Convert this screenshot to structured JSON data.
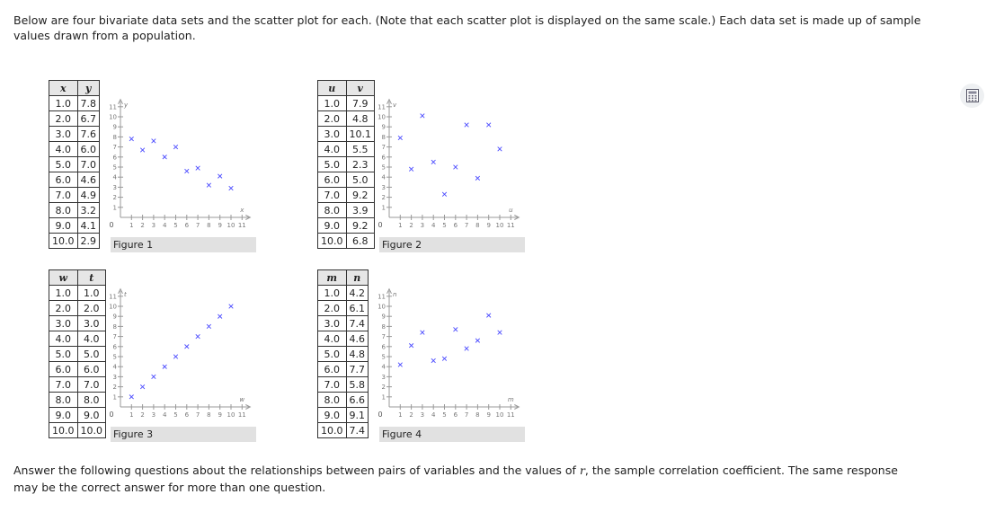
{
  "intro_text": "Below are four bivariate data sets and the scatter plot for each. (Note that each scatter plot is displayed on the same scale.) Each data set is made up of sample values drawn from a population.",
  "outro_text": "Answer the following questions about the relationships between pairs of variables and the values of r, the sample correlation coefficient. The same response may be the correct answer for more than one question.",
  "calculator_icon": "calculator-icon",
  "marker_color": "#4a4aff",
  "chart_data": [
    {
      "type": "scatter",
      "caption": "Figure 1",
      "xlabel": "x",
      "ylabel": "y",
      "xlim": [
        0,
        11
      ],
      "ylim": [
        0,
        11
      ],
      "x_ticks": [
        "1",
        "2",
        "3",
        "4",
        "5",
        "6",
        "7",
        "8",
        "9",
        "10",
        "11"
      ],
      "y_ticks": [
        "1",
        "2",
        "3",
        "4",
        "5",
        "6",
        "7",
        "8",
        "9",
        "10",
        "11"
      ],
      "origin_label": "0",
      "x": [
        "1.0",
        "2.0",
        "3.0",
        "4.0",
        "5.0",
        "6.0",
        "7.0",
        "8.0",
        "9.0",
        "10.0"
      ],
      "y": [
        "7.8",
        "6.7",
        "7.6",
        "6.0",
        "7.0",
        "4.6",
        "4.9",
        "3.2",
        "4.1",
        "2.9"
      ]
    },
    {
      "type": "scatter",
      "caption": "Figure 2",
      "xlabel": "u",
      "ylabel": "v",
      "xlim": [
        0,
        11
      ],
      "ylim": [
        0,
        11
      ],
      "x_ticks": [
        "1",
        "2",
        "3",
        "4",
        "5",
        "6",
        "7",
        "8",
        "9",
        "10",
        "11"
      ],
      "y_ticks": [
        "1",
        "2",
        "3",
        "4",
        "5",
        "6",
        "7",
        "8",
        "9",
        "10",
        "11"
      ],
      "origin_label": "0",
      "x": [
        "1.0",
        "2.0",
        "3.0",
        "4.0",
        "5.0",
        "6.0",
        "7.0",
        "8.0",
        "9.0",
        "10.0"
      ],
      "y": [
        "7.9",
        "4.8",
        "10.1",
        "5.5",
        "2.3",
        "5.0",
        "9.2",
        "3.9",
        "9.2",
        "6.8"
      ]
    },
    {
      "type": "scatter",
      "caption": "Figure 3",
      "xlabel": "w",
      "ylabel": "t",
      "xlim": [
        0,
        11
      ],
      "ylim": [
        0,
        11
      ],
      "x_ticks": [
        "1",
        "2",
        "3",
        "4",
        "5",
        "6",
        "7",
        "8",
        "9",
        "10",
        "11"
      ],
      "y_ticks": [
        "1",
        "2",
        "3",
        "4",
        "5",
        "6",
        "7",
        "8",
        "9",
        "10",
        "11"
      ],
      "origin_label": "0",
      "x": [
        "1.0",
        "2.0",
        "3.0",
        "4.0",
        "5.0",
        "6.0",
        "7.0",
        "8.0",
        "9.0",
        "10.0"
      ],
      "y": [
        "1.0",
        "2.0",
        "3.0",
        "4.0",
        "5.0",
        "6.0",
        "7.0",
        "8.0",
        "9.0",
        "10.0"
      ]
    },
    {
      "type": "scatter",
      "caption": "Figure 4",
      "xlabel": "m",
      "ylabel": "n",
      "xlim": [
        0,
        11
      ],
      "ylim": [
        0,
        11
      ],
      "x_ticks": [
        "1",
        "2",
        "3",
        "4",
        "5",
        "6",
        "7",
        "8",
        "9",
        "10",
        "11"
      ],
      "y_ticks": [
        "1",
        "2",
        "3",
        "4",
        "5",
        "6",
        "7",
        "8",
        "9",
        "10",
        "11"
      ],
      "origin_label": "0",
      "x": [
        "1.0",
        "2.0",
        "3.0",
        "4.0",
        "5.0",
        "6.0",
        "7.0",
        "8.0",
        "9.0",
        "10.0"
      ],
      "y": [
        "4.2",
        "6.1",
        "7.4",
        "4.6",
        "4.8",
        "7.7",
        "5.8",
        "6.6",
        "9.1",
        "7.4"
      ]
    }
  ]
}
